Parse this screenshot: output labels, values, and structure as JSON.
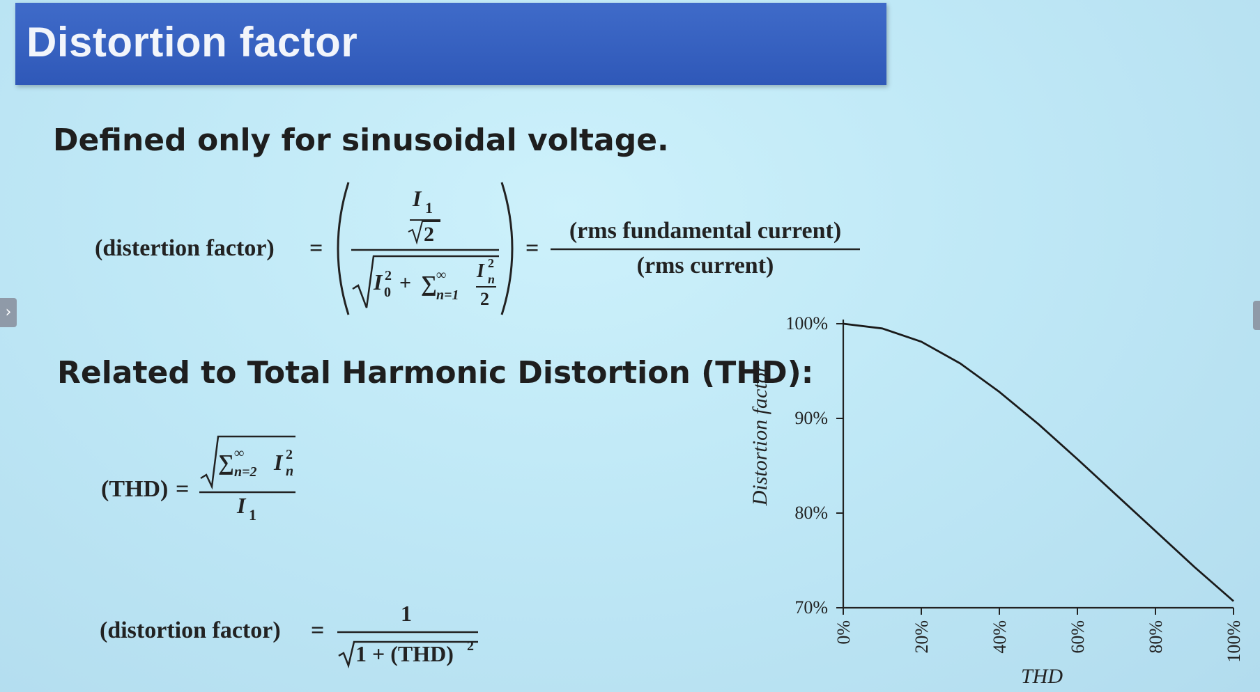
{
  "slide": {
    "title": "Distortion factor",
    "heading1": "Defined only for sinusoidal voltage.",
    "heading2": "Related to Total Harmonic Distortion (THD):"
  },
  "formula1": {
    "lhs": "(distertion factor)",
    "equals": "=",
    "num_I": "I",
    "num_sub": "1",
    "sqrt2": "2",
    "I0": "I",
    "I0_sub": "0",
    "I0_sup": "2",
    "plus": "+",
    "sigma": "∑",
    "sum_lower": "n=1",
    "sum_upper": "∞",
    "In": "I",
    "In_sub": "n",
    "In_sup": "2",
    "two": "2",
    "rhs_num": "(rms fundamental current)",
    "rhs_den": "(rms current)"
  },
  "formula2": {
    "lhs": "(THD)",
    "equals": "=",
    "sigma": "∑",
    "sum_lower": "n=2",
    "sum_upper": "∞",
    "In": "I",
    "In_sub": "n",
    "In_sup": "2",
    "den_I": "I",
    "den_sub": "1"
  },
  "formula3": {
    "lhs": "(distortion factor)",
    "equals": "=",
    "num": "1",
    "den": "1 + (THD)",
    "den_sup": "2"
  },
  "chart_data": {
    "type": "line",
    "title": "",
    "xlabel": "THD",
    "ylabel": "Distortion factor",
    "xlim": [
      0,
      100
    ],
    "ylim": [
      70,
      100
    ],
    "xticks": [
      "0%",
      "20%",
      "40%",
      "60%",
      "80%",
      "100%"
    ],
    "yticks": [
      "70%",
      "80%",
      "90%",
      "100%"
    ],
    "grid": false,
    "series": [
      {
        "x": [
          0,
          10,
          20,
          30,
          40,
          50,
          60,
          70,
          80,
          90,
          100
        ],
        "values": [
          100,
          99.5,
          98.1,
          95.8,
          92.8,
          89.4,
          85.7,
          81.9,
          78.1,
          74.3,
          70.7
        ]
      }
    ]
  }
}
